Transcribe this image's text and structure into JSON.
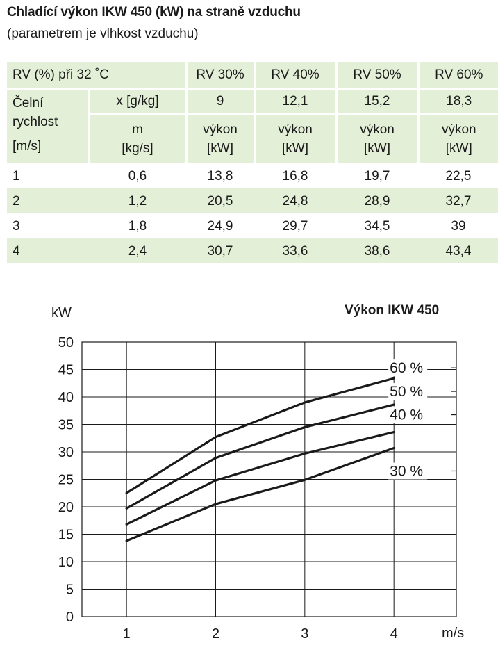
{
  "title": "Chladící výkon IKW 450 (kW) na straně vzduchu",
  "subtitle": "(parametrem je vlhkost vzduchu)",
  "table": {
    "header": [
      "RV (%) při 32 ˚C",
      "RV 30%",
      "RV 40%",
      "RV 50%",
      "RV 60%"
    ],
    "row_x": {
      "label": "x [g/kg]",
      "values": [
        "9",
        "12,1",
        "15,2",
        "18,3"
      ]
    },
    "velocity_label": [
      "Čelní",
      "rychlost",
      "[m/s]"
    ],
    "mass_label": [
      "m",
      "[kg/s]"
    ],
    "power_label": [
      "výkon",
      "[kW]"
    ],
    "rows": [
      [
        "1",
        "0,6",
        "13,8",
        "16,8",
        "19,7",
        "22,5"
      ],
      [
        "2",
        "1,2",
        "20,5",
        "24,8",
        "28,9",
        "32,7"
      ],
      [
        "3",
        "1,8",
        "24,9",
        "29,7",
        "34,5",
        "39"
      ],
      [
        "4",
        "2,4",
        "30,7",
        "33,6",
        "38,6",
        "43,4"
      ]
    ]
  },
  "chart_data": {
    "type": "line",
    "title": "Výkon IKW 450",
    "xlabel": "m/s",
    "ylabel": "kW",
    "x": [
      1,
      2,
      3,
      4
    ],
    "xticks": [
      1,
      2,
      3,
      4
    ],
    "xlim": [
      0.5,
      4.7
    ],
    "ylim": [
      0,
      50
    ],
    "yticks": [
      0,
      5,
      10,
      15,
      20,
      25,
      30,
      35,
      40,
      45,
      50
    ],
    "grid": true,
    "series": [
      {
        "name": "30 %",
        "values": [
          13.8,
          20.5,
          24.9,
          30.7
        ]
      },
      {
        "name": "40 %",
        "values": [
          16.8,
          24.8,
          29.7,
          33.6
        ]
      },
      {
        "name": "50 %",
        "values": [
          19.7,
          28.9,
          34.5,
          38.6
        ]
      },
      {
        "name": "60 %",
        "values": [
          22.5,
          32.7,
          39,
          43.4
        ]
      }
    ],
    "line_color": "#1a1a1a"
  },
  "colors": {
    "row_fill": "#e3efd7"
  }
}
